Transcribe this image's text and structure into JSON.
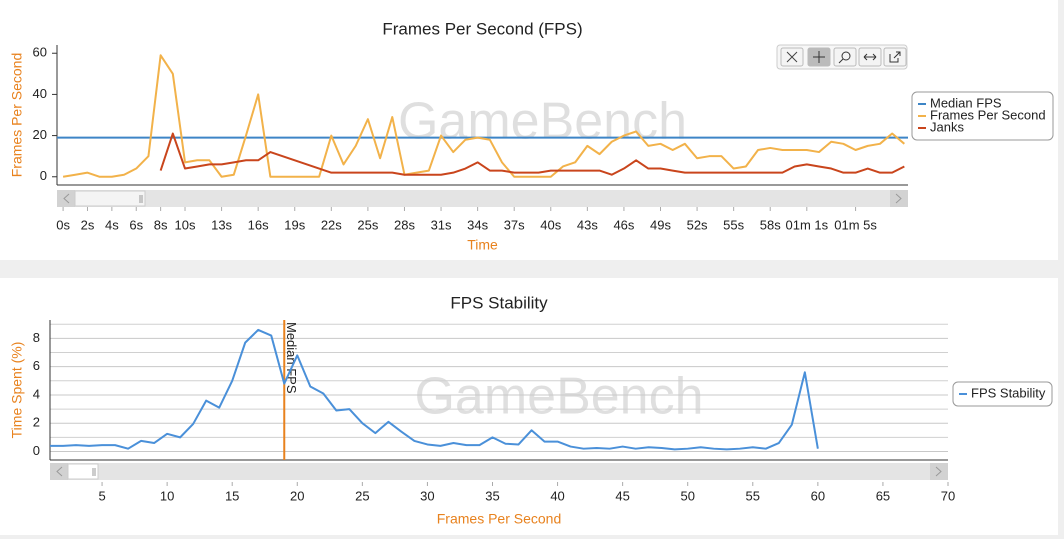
{
  "chart_data": [
    {
      "type": "line",
      "title": "Frames Per Second (FPS)",
      "ylabel": "Frames Per Second",
      "xlabel": "Time",
      "watermark": "GameBench",
      "x": [
        0,
        1,
        2,
        3,
        4,
        5,
        6,
        7,
        8,
        9,
        10,
        11,
        12,
        13,
        14,
        15,
        16,
        17,
        18,
        19,
        20,
        21,
        22,
        23,
        24,
        25,
        26,
        27,
        28,
        29,
        30,
        31,
        32,
        33,
        34,
        35,
        36,
        37,
        38,
        39,
        40,
        41,
        42,
        43,
        44,
        45,
        46,
        47,
        48,
        49,
        50,
        51,
        52,
        53,
        54,
        55,
        56,
        57,
        58,
        59,
        60,
        61,
        62,
        63,
        64,
        65,
        66,
        67,
        68,
        69
      ],
      "hlines": [
        {
          "name": "Median FPS",
          "color": "#3d85c6",
          "value": 19
        }
      ],
      "series": [
        {
          "name": "Frames Per Second",
          "color": "#f2b24a",
          "values": [
            0,
            1,
            2,
            0,
            0,
            1,
            4,
            10,
            59,
            50,
            7,
            8,
            8,
            0,
            1,
            20,
            40,
            0,
            0,
            0,
            0,
            0,
            20,
            6,
            15,
            28,
            9,
            29,
            1,
            2,
            3,
            20,
            12,
            18,
            19,
            18,
            7,
            0,
            0,
            0,
            0,
            5,
            7,
            15,
            11,
            17,
            20,
            22,
            15,
            16,
            13,
            16,
            9,
            10,
            10,
            4,
            5,
            13,
            14,
            13,
            13,
            13,
            12,
            17,
            16,
            13,
            15,
            16,
            21,
            16
          ]
        },
        {
          "name": "Janks",
          "color": "#c9451c",
          "values": [
            null,
            null,
            null,
            null,
            null,
            null,
            null,
            null,
            3,
            21,
            4,
            5,
            6,
            6,
            7,
            8,
            8,
            12,
            10,
            8,
            6,
            4,
            2,
            2,
            2,
            2,
            2,
            2,
            1,
            1,
            1,
            1,
            2,
            4,
            7,
            3,
            3,
            2,
            2,
            2,
            3,
            3,
            3,
            3,
            3,
            1,
            4,
            8,
            4,
            4,
            3,
            2,
            2,
            2,
            2,
            2,
            2,
            2,
            2,
            2,
            5,
            6,
            5,
            4,
            2,
            2,
            4,
            2,
            2,
            5
          ]
        }
      ],
      "xlim": [
        -0.5,
        69.3
      ],
      "ylim": [
        -4,
        64
      ],
      "yticks": [
        0,
        20,
        40,
        60
      ],
      "xticks": [
        {
          "value": 0,
          "label": "0s"
        },
        {
          "value": 2,
          "label": "2s"
        },
        {
          "value": 4,
          "label": "4s"
        },
        {
          "value": 6,
          "label": "6s"
        },
        {
          "value": 8,
          "label": "8s"
        },
        {
          "value": 10,
          "label": "10s"
        },
        {
          "value": 13,
          "label": "13s"
        },
        {
          "value": 16,
          "label": "16s"
        },
        {
          "value": 19,
          "label": "19s"
        },
        {
          "value": 22,
          "label": "22s"
        },
        {
          "value": 25,
          "label": "25s"
        },
        {
          "value": 28,
          "label": "28s"
        },
        {
          "value": 31,
          "label": "31s"
        },
        {
          "value": 34,
          "label": "34s"
        },
        {
          "value": 37,
          "label": "37s"
        },
        {
          "value": 40,
          "label": "40s"
        },
        {
          "value": 43,
          "label": "43s"
        },
        {
          "value": 46,
          "label": "46s"
        },
        {
          "value": 49,
          "label": "49s"
        },
        {
          "value": 52,
          "label": "52s"
        },
        {
          "value": 55,
          "label": "55s"
        },
        {
          "value": 58,
          "label": "58s"
        },
        {
          "value": 61,
          "label": "01m 1s"
        },
        {
          "value": 65,
          "label": "01m 5s"
        }
      ],
      "grid": false,
      "legend": "right"
    },
    {
      "type": "line",
      "title": "FPS Stability",
      "ylabel": "Time Spent (%)",
      "xlabel": "Frames Per Second",
      "watermark": "GameBench",
      "x": [
        1,
        2,
        3,
        4,
        5,
        6,
        7,
        8,
        9,
        10,
        11,
        12,
        13,
        14,
        15,
        16,
        17,
        18,
        19,
        20,
        21,
        22,
        23,
        24,
        25,
        26,
        27,
        28,
        29,
        30,
        31,
        32,
        33,
        34,
        35,
        36,
        37,
        38,
        39,
        40,
        41,
        42,
        43,
        44,
        45,
        46,
        47,
        48,
        49,
        50,
        51,
        52,
        53,
        54,
        55,
        56,
        57,
        58,
        59,
        60
      ],
      "vlines": [
        {
          "label": "Median FPS",
          "color": "#e8821e",
          "value": 19
        }
      ],
      "series": [
        {
          "name": "FPS Stability",
          "color": "#4a90d9",
          "values": [
            0.4,
            0.4,
            0.45,
            0.4,
            0.45,
            0.45,
            0.2,
            0.75,
            0.6,
            1.25,
            1.0,
            1.95,
            3.6,
            3.1,
            5.0,
            7.7,
            8.6,
            8.2,
            4.8,
            6.8,
            4.6,
            4.1,
            2.9,
            3.0,
            2.0,
            1.3,
            2.1,
            1.4,
            0.75,
            0.5,
            0.4,
            0.6,
            0.45,
            0.45,
            1.0,
            0.55,
            0.5,
            1.5,
            0.7,
            0.7,
            0.35,
            0.2,
            0.25,
            0.2,
            0.35,
            0.2,
            0.3,
            0.25,
            0.15,
            0.2,
            0.3,
            0.2,
            0.15,
            0.2,
            0.3,
            0.2,
            0.6,
            1.9,
            5.6,
            0.2
          ]
        }
      ],
      "xlim": [
        1,
        70
      ],
      "ylim": [
        -0.6,
        9.3
      ],
      "yticks": [
        0,
        2,
        4,
        6,
        8
      ],
      "y_minor_ticks": [
        1,
        3,
        5,
        7,
        9
      ],
      "xticks": [
        5,
        10,
        15,
        20,
        25,
        30,
        35,
        40,
        45,
        50,
        55,
        60,
        65,
        70
      ],
      "grid": true,
      "legend": "right"
    }
  ]
}
